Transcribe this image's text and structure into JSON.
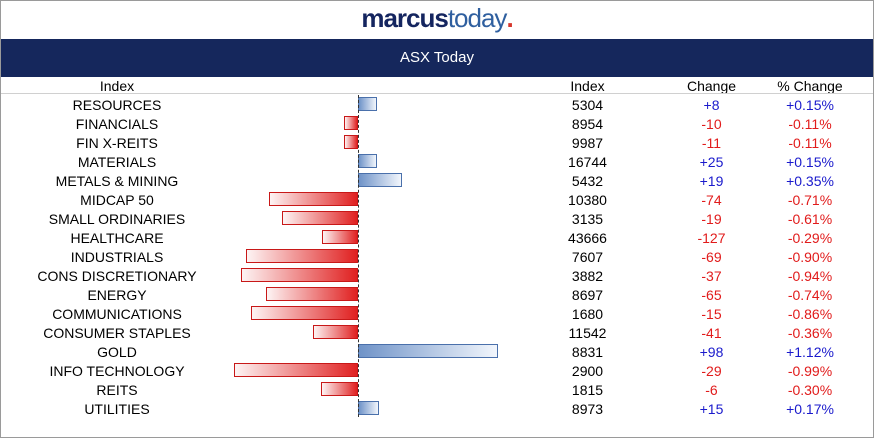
{
  "logo": {
    "brand": "marcus",
    "brand2": "today",
    "dot": "."
  },
  "banner": {
    "title": "ASX Today"
  },
  "headers": {
    "name": "Index",
    "index": "Index",
    "change": "Change",
    "pct": "% Change"
  },
  "colors": {
    "banner": "#15275c",
    "positive": "#1a1acc",
    "negative": "#e11b1b",
    "bar_up": "#6f93c8",
    "bar_down": "#e02020"
  },
  "chart_data": {
    "type": "bar",
    "orientation": "horizontal",
    "categories": [
      "RESOURCES",
      "FINANCIALS",
      "FIN X-REITS",
      "MATERIALS",
      "METALS & MINING",
      "MIDCAP 50",
      "SMALL ORDINARIES",
      "HEALTHCARE",
      "INDUSTRIALS",
      "CONS DISCRETIONARY",
      "ENERGY",
      "COMMUNICATIONS",
      "CONSUMER STAPLES",
      "GOLD",
      "INFO TECHNOLOGY",
      "REITS",
      "UTILITIES"
    ],
    "values": [
      0.15,
      -0.11,
      -0.11,
      0.15,
      0.35,
      -0.71,
      -0.61,
      -0.29,
      -0.9,
      -0.94,
      -0.74,
      -0.86,
      -0.36,
      1.12,
      -0.99,
      -0.3,
      0.17
    ],
    "rows": [
      {
        "name": "RESOURCES",
        "index": "5304",
        "change": "+8",
        "pct": "+0.15%"
      },
      {
        "name": "FINANCIALS",
        "index": "8954",
        "change": "-10",
        "pct": "-0.11%"
      },
      {
        "name": "FIN X-REITS",
        "index": "9987",
        "change": "-11",
        "pct": "-0.11%"
      },
      {
        "name": "MATERIALS",
        "index": "16744",
        "change": "+25",
        "pct": "+0.15%"
      },
      {
        "name": "METALS & MINING",
        "index": "5432",
        "change": "+19",
        "pct": "+0.35%"
      },
      {
        "name": "MIDCAP 50",
        "index": "10380",
        "change": "-74",
        "pct": "-0.71%"
      },
      {
        "name": "SMALL ORDINARIES",
        "index": "3135",
        "change": "-19",
        "pct": "-0.61%"
      },
      {
        "name": "HEALTHCARE",
        "index": "43666",
        "change": "-127",
        "pct": "-0.29%"
      },
      {
        "name": "INDUSTRIALS",
        "index": "7607",
        "change": "-69",
        "pct": "-0.90%"
      },
      {
        "name": "CONS DISCRETIONARY",
        "index": "3882",
        "change": "-37",
        "pct": "-0.94%"
      },
      {
        "name": "ENERGY",
        "index": "8697",
        "change": "-65",
        "pct": "-0.74%"
      },
      {
        "name": "COMMUNICATIONS",
        "index": "1680",
        "change": "-15",
        "pct": "-0.86%"
      },
      {
        "name": "CONSUMER STAPLES",
        "index": "11542",
        "change": "-41",
        "pct": "-0.36%"
      },
      {
        "name": "GOLD",
        "index": "8831",
        "change": "+98",
        "pct": "+1.12%"
      },
      {
        "name": "INFO TECHNOLOGY",
        "index": "2900",
        "change": "-29",
        "pct": "-0.99%"
      },
      {
        "name": "REITS",
        "index": "1815",
        "change": "-6",
        "pct": "-0.30%"
      },
      {
        "name": "UTILITIES",
        "index": "8973",
        "change": "+15",
        "pct": "+0.17%"
      }
    ],
    "title": "ASX Today",
    "grid": false
  }
}
